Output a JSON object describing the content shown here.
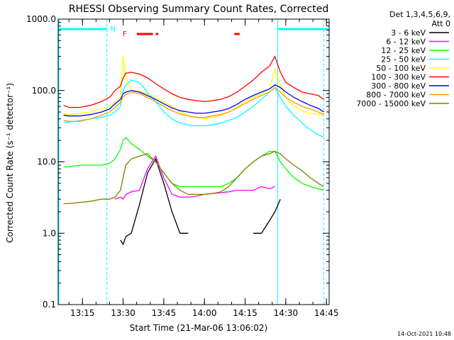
{
  "chart_data": {
    "type": "line",
    "title": "RHESSI Observing Summary Count Rates, Corrected",
    "xlabel": "Start Time (21-Mar-06 13:06:02)",
    "ylabel": "Corrected Count Rate",
    "ylabel_units": "(s⁻¹ detector⁻¹)",
    "yscale": "log",
    "ylim": [
      0.1,
      1000
    ],
    "xlim": [
      "13:06",
      "14:46"
    ],
    "y_ticks": [
      "0.1",
      "1.0",
      "10.0",
      "100.0",
      "1000.0"
    ],
    "x_ticks": [
      "13:15",
      "13:30",
      "13:45",
      "14:00",
      "14:15",
      "14:30",
      "14:45"
    ],
    "legend_header": [
      "Det 1,3,4,5,6,9,",
      "Att 0"
    ],
    "legend_position": "right",
    "annotations": {
      "night_label": "N",
      "flare_label": "F"
    },
    "footer_date": "14-Oct-2021 10:48",
    "x": [
      "13:08",
      "13:10",
      "13:14",
      "13:18",
      "13:22",
      "13:25",
      "13:27",
      "13:29",
      "13:30",
      "13:31",
      "13:33",
      "13:36",
      "13:39",
      "13:42",
      "13:45",
      "13:48",
      "13:51",
      "13:54",
      "13:57",
      "14:00",
      "14:03",
      "14:06",
      "14:09",
      "14:12",
      "14:15",
      "14:18",
      "14:21",
      "14:24",
      "14:26",
      "14:28",
      "14:30",
      "14:33",
      "14:36",
      "14:39",
      "14:42",
      "14:44"
    ],
    "series": [
      {
        "name": "3 - 6 keV",
        "color": "#000000",
        "values": [
          null,
          null,
          null,
          null,
          null,
          null,
          null,
          0.8,
          0.7,
          0.9,
          1.0,
          2.5,
          7,
          11,
          5,
          2,
          1,
          1,
          null,
          null,
          null,
          null,
          null,
          null,
          null,
          1.0,
          1.0,
          1.5,
          2.0,
          3.0,
          null,
          null,
          null,
          null,
          null,
          null
        ]
      },
      {
        "name": "6 - 12 keV",
        "color": "#ff00ff",
        "values": [
          null,
          null,
          null,
          null,
          null,
          null,
          3.0,
          3.2,
          3.0,
          3.5,
          3.8,
          4.0,
          8,
          12,
          6,
          3.5,
          3.2,
          3.2,
          3.3,
          3.5,
          3.6,
          3.7,
          3.8,
          4.0,
          4.0,
          4.0,
          4.5,
          4.2,
          4.5,
          null,
          null,
          null,
          null,
          null,
          null,
          null
        ]
      },
      {
        "name": "12 - 25 keV",
        "color": "#00ff00",
        "values": [
          8.5,
          8.5,
          9,
          9,
          9,
          9.5,
          11,
          15,
          20,
          22,
          18,
          15,
          12,
          10,
          7,
          5,
          4.5,
          4.5,
          4.5,
          4.5,
          4.5,
          4.5,
          5,
          6,
          8,
          10,
          12,
          14,
          14,
          10,
          8,
          6,
          5,
          4.5,
          4.2,
          4.0
        ]
      },
      {
        "name": "25 - 50 keV",
        "color": "#00ffff",
        "values": [
          36,
          36,
          38,
          40,
          42,
          45,
          50,
          60,
          100,
          120,
          140,
          130,
          95,
          70,
          50,
          40,
          35,
          33,
          32,
          32,
          33,
          35,
          38,
          42,
          50,
          60,
          75,
          95,
          110,
          80,
          60,
          45,
          35,
          28,
          24,
          22
        ]
      },
      {
        "name": "50 - 100 keV",
        "color": "#ffff00",
        "values": [
          47,
          46,
          48,
          50,
          55,
          60,
          68,
          80,
          300,
          150,
          100,
          98,
          90,
          80,
          70,
          60,
          50,
          45,
          42,
          40,
          42,
          45,
          50,
          58,
          70,
          80,
          90,
          105,
          200,
          120,
          80,
          60,
          52,
          48,
          46,
          45
        ]
      },
      {
        "name": "100 - 300 keV",
        "color": "#ff0000",
        "values": [
          62,
          58,
          58,
          62,
          70,
          80,
          100,
          115,
          150,
          175,
          180,
          170,
          150,
          125,
          105,
          90,
          80,
          75,
          72,
          70,
          72,
          75,
          82,
          95,
          115,
          140,
          180,
          220,
          300,
          180,
          130,
          110,
          95,
          90,
          85,
          75
        ]
      },
      {
        "name": "300 - 800 keV",
        "color": "#0000ff",
        "values": [
          45,
          44,
          44,
          46,
          50,
          55,
          65,
          75,
          90,
          95,
          100,
          95,
          85,
          75,
          65,
          57,
          52,
          50,
          48,
          48,
          50,
          52,
          56,
          64,
          75,
          85,
          95,
          105,
          120,
          110,
          95,
          80,
          70,
          62,
          56,
          50
        ]
      },
      {
        "name": "800 - 7000 keV",
        "color": "#ff9900",
        "values": [
          38,
          37,
          37,
          40,
          45,
          50,
          58,
          68,
          80,
          88,
          95,
          90,
          80,
          70,
          60,
          52,
          47,
          44,
          42,
          42,
          44,
          46,
          50,
          57,
          66,
          75,
          85,
          95,
          110,
          95,
          80,
          68,
          60,
          55,
          50,
          46
        ]
      },
      {
        "name": "7000 - 15000 keV",
        "color": "#808000",
        "values": [
          2.6,
          2.6,
          2.7,
          2.8,
          3.0,
          3.0,
          3.2,
          4.0,
          6,
          9,
          11,
          12,
          13,
          10,
          7,
          5,
          4,
          3.5,
          3.5,
          3.5,
          3.6,
          3.8,
          4.5,
          6,
          8,
          10,
          12,
          13,
          14,
          13,
          11,
          9,
          7.5,
          6,
          5,
          4.5
        ]
      }
    ]
  }
}
